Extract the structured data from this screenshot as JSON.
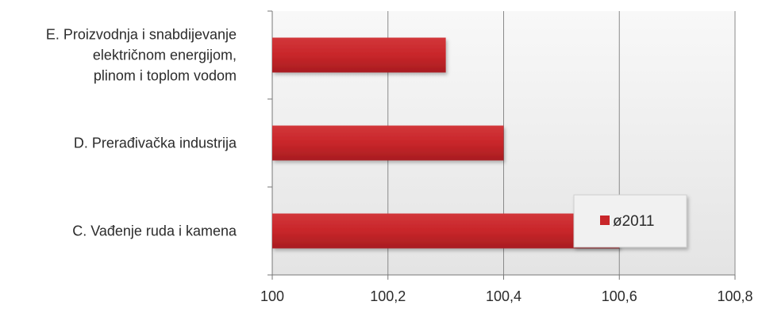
{
  "chart_data": {
    "type": "bar",
    "orientation": "horizontal",
    "categories": [
      [
        "E. Proizvodnja i snabdijevanje",
        "električnom energijom,",
        "plinom i toplom vodom"
      ],
      [
        "D. Prerađivačka industrija"
      ],
      [
        "C. Vađenje ruda i kamena"
      ]
    ],
    "series": [
      {
        "name": "ø2011",
        "values": [
          100.3,
          100.4,
          100.6
        ]
      }
    ],
    "xlim": [
      100,
      100.8
    ],
    "xticks": [
      "100",
      "100,2",
      "100,4",
      "100,6",
      "100,8"
    ],
    "grid": true,
    "legend_position": "bottom-right",
    "colors": {
      "bar": "#c8262a",
      "bar_dark": "#9e1b1e",
      "grid": "#8a8a8a",
      "plot_bg_top": "#f7f7f7",
      "plot_bg_bottom": "#e6e6e6"
    }
  }
}
